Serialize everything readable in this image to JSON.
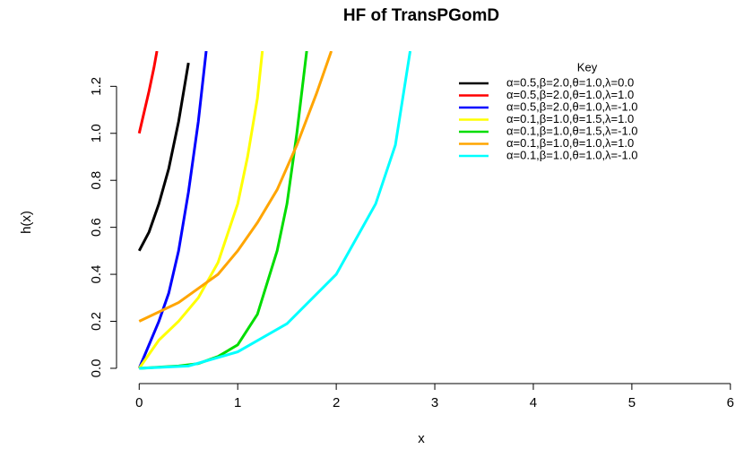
{
  "chart_data": {
    "type": "line",
    "title": "HF of TransPGomD",
    "x_label": "x",
    "y_label": "h(x)",
    "legend_title": "Key",
    "legend_position": "top-right",
    "xlim": [
      -0.23,
      6.12
    ],
    "ylim": [
      -0.065,
      1.35
    ],
    "xticks": [
      0,
      1,
      2,
      3,
      4,
      5,
      6
    ],
    "yticks": [
      {
        "value": 0,
        "label": "0.0"
      },
      {
        "value": 0.2,
        "label": "0.2"
      },
      {
        "value": 0.4,
        "label": "0.4"
      },
      {
        "value": 0.6,
        "label": "0.6"
      },
      {
        "value": 0.8,
        "label": "0.8"
      },
      {
        "value": 1,
        "label": "1.0"
      },
      {
        "value": 1.2,
        "label": "1.2"
      }
    ],
    "series": [
      {
        "name": "α=0.5,β=2.0,θ=1.0,λ=0.0",
        "color": "#000000",
        "x": [
          0,
          0.1,
          0.2,
          0.3,
          0.4,
          0.5
        ],
        "values": [
          0.5,
          0.58,
          0.7,
          0.85,
          1.05,
          1.3
        ]
      },
      {
        "name": "α=0.5,β=2.0,θ=1.0,λ=1.0",
        "color": "#ff0000",
        "x": [
          0,
          0.05,
          0.1,
          0.15,
          0.18
        ],
        "values": [
          1.0,
          1.09,
          1.18,
          1.28,
          1.35
        ]
      },
      {
        "name": "α=0.5,β=2.0,θ=1.0,λ=-1.0",
        "color": "#0000ff",
        "x": [
          0,
          0.1,
          0.2,
          0.3,
          0.4,
          0.5,
          0.6,
          0.68
        ],
        "values": [
          0,
          0.1,
          0.2,
          0.32,
          0.5,
          0.75,
          1.05,
          1.35
        ]
      },
      {
        "name": "α=0.1,β=1.0,θ=1.5,λ=1.0",
        "color": "#ffff00",
        "x": [
          0,
          0.2,
          0.4,
          0.6,
          0.8,
          1.0,
          1.1,
          1.2,
          1.25
        ],
        "values": [
          0,
          0.12,
          0.2,
          0.3,
          0.45,
          0.7,
          0.9,
          1.15,
          1.35
        ]
      },
      {
        "name": "α=0.1,β=1.0,θ=1.5,λ=-1.0",
        "color": "#00dd00",
        "x": [
          0,
          0.4,
          0.6,
          0.8,
          1.0,
          1.2,
          1.4,
          1.5,
          1.6,
          1.7
        ],
        "values": [
          0,
          0.01,
          0.02,
          0.05,
          0.1,
          0.23,
          0.5,
          0.7,
          1.0,
          1.35
        ]
      },
      {
        "name": "α=0.1,β=1.0,θ=1.0,λ=1.0",
        "color": "#ffa500",
        "x": [
          0,
          0.4,
          0.8,
          1.0,
          1.2,
          1.4,
          1.6,
          1.8,
          1.95
        ],
        "values": [
          0.2,
          0.28,
          0.4,
          0.5,
          0.62,
          0.76,
          0.95,
          1.17,
          1.35
        ]
      },
      {
        "name": "α=0.1,β=1.0,θ=1.0,λ=-1.0",
        "color": "#00ffff",
        "x": [
          0,
          0.5,
          1.0,
          1.5,
          2.0,
          2.4,
          2.6,
          2.75
        ],
        "values": [
          0,
          0.01,
          0.07,
          0.19,
          0.4,
          0.7,
          0.95,
          1.35
        ]
      }
    ]
  }
}
